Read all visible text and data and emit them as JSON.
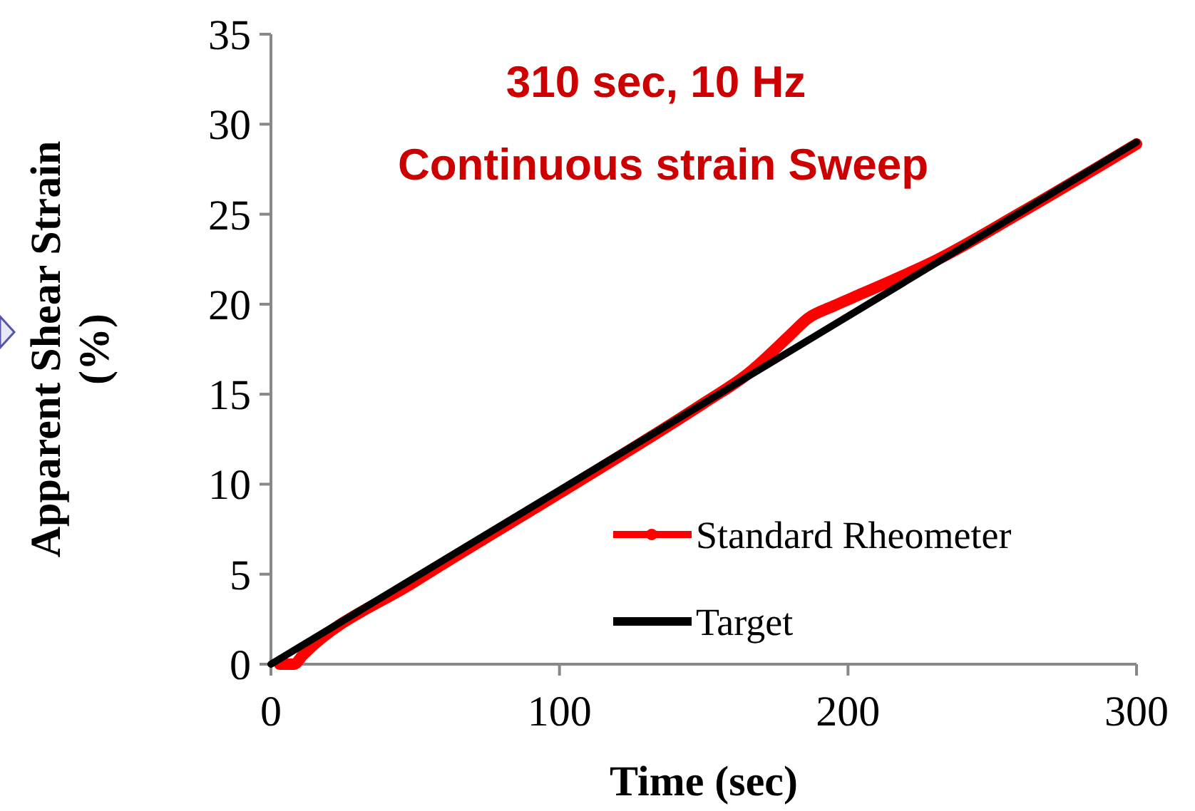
{
  "chart_data": {
    "type": "line",
    "title": "310 sec, 10 Hz",
    "subtitle": "Continuous strain Sweep",
    "xlabel": "Time (sec)",
    "ylabel": "Apparent Shear Strain (%)",
    "xlim": [
      0,
      300
    ],
    "ylim": [
      0,
      35
    ],
    "xticks": [
      0,
      100,
      200,
      300
    ],
    "yticks": [
      0,
      5,
      10,
      15,
      20,
      25,
      30,
      35
    ],
    "grid": false,
    "legend": "bottom right",
    "series": [
      {
        "name": "Standard Rheometer",
        "color": "#ff0000",
        "marker": "circle",
        "x": [
          3,
          8,
          11,
          50,
          100,
          150,
          165,
          180,
          186,
          195,
          205,
          215,
          230,
          260,
          300
        ],
        "values": [
          0,
          0,
          0.5,
          4.6,
          9.5,
          14.5,
          16.1,
          18.3,
          19.2,
          19.9,
          20.6,
          21.3,
          22.4,
          25.1,
          28.9
        ]
      },
      {
        "name": "Target",
        "color": "#000000",
        "marker": "none",
        "x": [
          0,
          300
        ],
        "values": [
          0,
          29
        ]
      }
    ]
  }
}
